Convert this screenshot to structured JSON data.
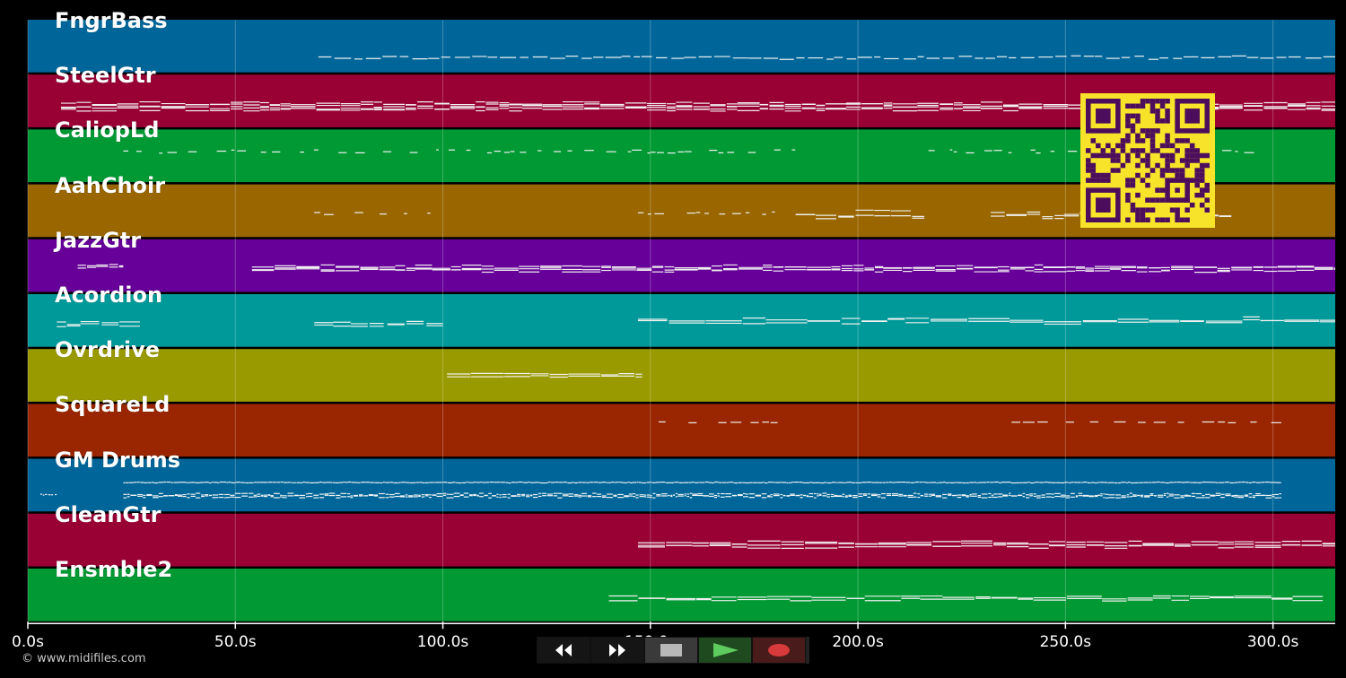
{
  "tracks": [
    {
      "name": "FngrBass",
      "color": "#006699",
      "pattern": "bass"
    },
    {
      "name": "SteelGtr",
      "color": "#990033",
      "pattern": "dense"
    },
    {
      "name": "CaliopLd",
      "color": "#009933",
      "pattern": "sparse"
    },
    {
      "name": "AahChoir",
      "color": "#996600",
      "pattern": "choir"
    },
    {
      "name": "JazzGtr",
      "color": "#660099",
      "pattern": "dense"
    },
    {
      "name": "Acordion",
      "color": "#009999",
      "pattern": "accordion"
    },
    {
      "name": "Ovrdrive",
      "color": "#999900",
      "pattern": "overdrive"
    },
    {
      "name": "SquareLd",
      "color": "#992600",
      "pattern": "square"
    },
    {
      "name": "GM Drums",
      "color": "#006699",
      "pattern": "drums"
    },
    {
      "name": "CleanGtr",
      "color": "#990033",
      "pattern": "clean"
    },
    {
      "name": "Ensmble2",
      "color": "#009933",
      "pattern": "ensemble"
    }
  ],
  "axis": {
    "min_seconds": 0,
    "max_seconds": 315,
    "ticks": [
      {
        "value": 0,
        "label": "0.0s"
      },
      {
        "value": 50,
        "label": "50.0s"
      },
      {
        "value": 100,
        "label": "100.0s"
      },
      {
        "value": 150,
        "label": "150.0s"
      },
      {
        "value": 200,
        "label": "200.0s"
      },
      {
        "value": 250,
        "label": "250.0s"
      },
      {
        "value": 300,
        "label": "300.0s"
      }
    ]
  },
  "footer": {
    "copyright": "© www.midifiles.com"
  },
  "transport": {
    "buttons": [
      {
        "name": "rewind-button",
        "icon": "rewind-icon"
      },
      {
        "name": "fast-forward-button",
        "icon": "fast-forward-icon"
      },
      {
        "name": "stop-button",
        "icon": "stop-icon"
      },
      {
        "name": "play-button",
        "icon": "play-icon"
      },
      {
        "name": "record-button",
        "icon": "record-icon"
      }
    ]
  },
  "qr_code": {
    "icon": "qr-code-icon",
    "color": "#f6e32a",
    "module_color": "#4b0d5c"
  }
}
